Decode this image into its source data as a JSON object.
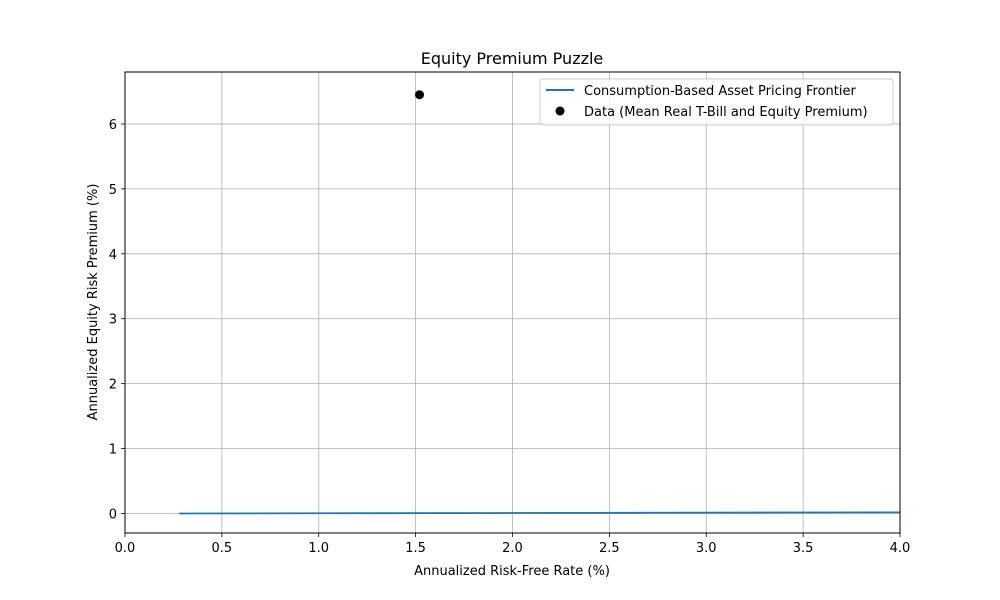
{
  "chart_data": {
    "type": "line",
    "title": "Equity Premium Puzzle",
    "xlabel": "Annualized Risk-Free Rate (%)",
    "ylabel": "Annualized Equity Risk Premium (%)",
    "xlim": [
      0.0,
      4.0
    ],
    "ylim": [
      -0.3,
      6.8
    ],
    "grid": true,
    "legend_position": "top-right",
    "x_ticks": [
      "0.0",
      "0.5",
      "1.0",
      "1.5",
      "2.0",
      "2.5",
      "3.0",
      "3.5",
      "4.0"
    ],
    "x_tick_values": [
      0.0,
      0.5,
      1.0,
      1.5,
      2.0,
      2.5,
      3.0,
      3.5,
      4.0
    ],
    "y_ticks": [
      "0",
      "1",
      "2",
      "3",
      "4",
      "5",
      "6"
    ],
    "y_tick_values": [
      0,
      1,
      2,
      3,
      4,
      5,
      6
    ],
    "series": [
      {
        "name": "Consumption-Based Asset Pricing Frontier",
        "kind": "line",
        "color": "#1f77b4",
        "x": [
          0.28,
          1.0,
          2.0,
          3.0,
          4.0
        ],
        "y": [
          0.0,
          0.004,
          0.008,
          0.013,
          0.018
        ]
      },
      {
        "name": "Data (Mean Real T-Bill and Equity Premium)",
        "kind": "scatter",
        "color": "#000000",
        "x": [
          1.52
        ],
        "y": [
          6.45
        ]
      }
    ]
  }
}
